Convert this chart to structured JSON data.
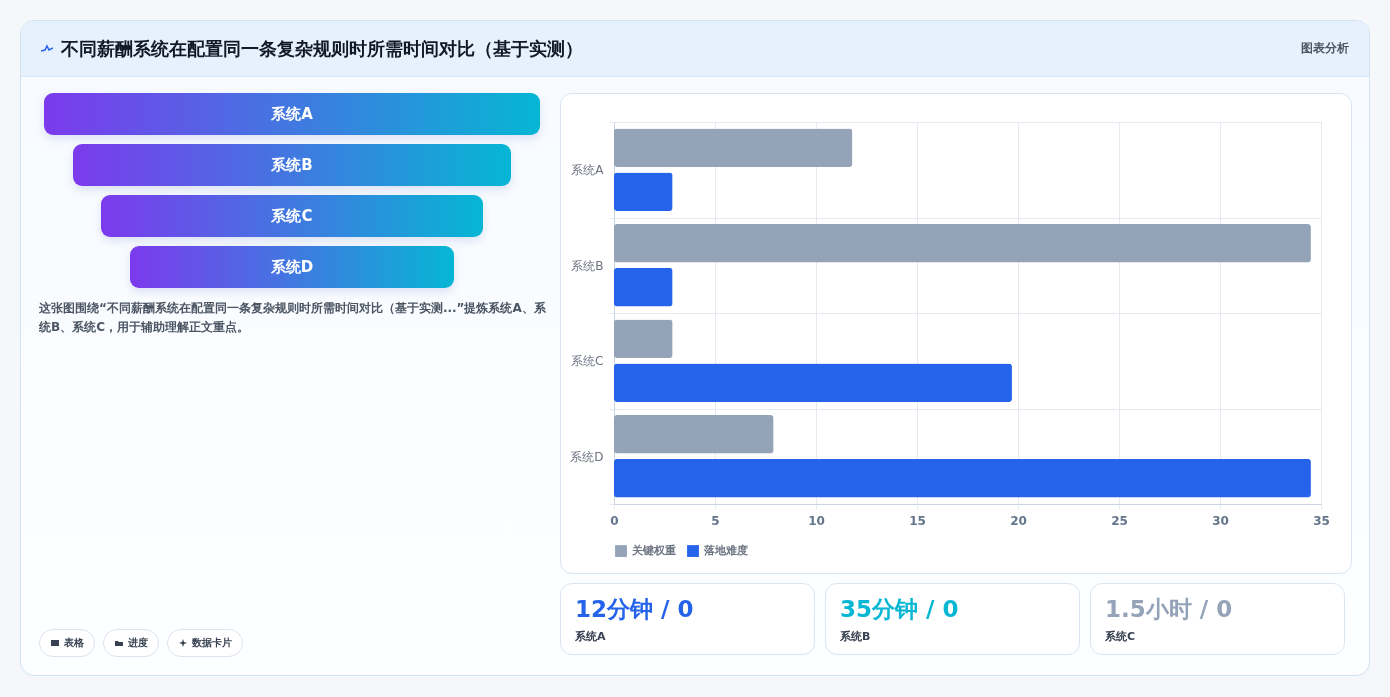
{
  "chart_data": [
    {
      "type": "other",
      "title": "不同薪酬系统在配置同一条复杂规则时所需时间对比（基于实测）",
      "annotations": [
        "图表分析"
      ]
    },
    {
      "type": "bar",
      "orientation": "horizontal",
      "categories": [
        "系统A",
        "系统B",
        "系统C",
        "系统D"
      ],
      "series": [
        {
          "name": "关键权重",
          "color": "#94a3b8",
          "values": [
            11.8,
            34.5,
            2.9,
            7.9
          ]
        },
        {
          "name": "落地难度",
          "color": "#2563eb",
          "values": [
            2.9,
            2.9,
            19.7,
            34.5
          ]
        }
      ],
      "xlim": [
        0,
        35
      ],
      "xticks": [
        0,
        5,
        10,
        15,
        20,
        25,
        30,
        35
      ],
      "grid": true,
      "legend": "bottom"
    },
    {
      "type": "other",
      "categories": [
        "系统A",
        "系统B",
        "系统C",
        "系统D"
      ],
      "annotations": [
        "这张图围绕“不同薪酬系统在配置同一条复杂规则时所需时间对比（基于实测...”提炼系统A、系统B、系统C，用于辅助理解正文重点。"
      ]
    },
    {
      "type": "other",
      "categories": [
        "系统A",
        "系统B",
        "系统C"
      ],
      "value_labels": [
        "12分钟 / 0",
        "35分钟 / 0",
        "1.5小时 / 0"
      ]
    },
    {
      "type": "other",
      "annotations": [
        "表格",
        "进度",
        "数据卡片"
      ]
    }
  ]
}
